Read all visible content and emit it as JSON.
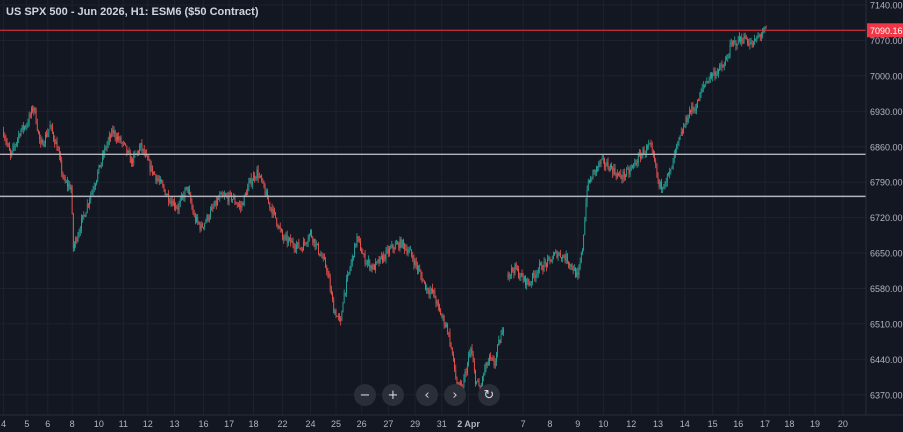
{
  "header": {
    "title": "US SPX 500 - Jun 2026, H1: ESM6 ($50 Contract)"
  },
  "toolbar": {
    "zoom_out": "−",
    "zoom_in": "+",
    "scroll_left": "‹",
    "scroll_right": "›",
    "reset": "↻"
  },
  "colors": {
    "background": "#131722",
    "grid": "#1e222d",
    "axis_text": "#b2b5be",
    "up": "#26a69a",
    "down": "#ef5350",
    "hline": "#b2b5be",
    "price_line": "#f23645"
  },
  "chart_data": {
    "type": "candlestick",
    "symbol": "ESM6",
    "timeframe": "H1",
    "y_axis": {
      "min": 6330,
      "max": 7150,
      "ticks": [
        7140,
        7070,
        7000,
        6930,
        6860,
        6790,
        6720,
        6650,
        6580,
        6510,
        6440,
        6370
      ],
      "tick_labels": [
        "7140.00",
        "7070.00",
        "7000.00",
        "6930.00",
        "6860.00",
        "6790.00",
        "6720.00",
        "6650.00",
        "6580.00",
        "6510.00",
        "6440.00",
        "6370.00"
      ]
    },
    "x_axis": {
      "labels": [
        "4",
        "5",
        "6",
        "8",
        "10",
        "11",
        "12",
        "13",
        "16",
        "17",
        "18",
        "22",
        "24",
        "25",
        "26",
        "27",
        "29",
        "31",
        "2 Apr",
        "7",
        "8",
        "9",
        "10",
        "12",
        "13",
        "14",
        "15",
        "16",
        "17",
        "18",
        "19",
        "20"
      ],
      "label_index": [
        0,
        20,
        38,
        59,
        82,
        103,
        124,
        147,
        172,
        194,
        215,
        240,
        264,
        286,
        308,
        331,
        354,
        377,
        400,
        447,
        470,
        494,
        516,
        540,
        563,
        586,
        610,
        632,
        655,
        676,
        698,
        722
      ]
    },
    "last_price": 7090.16,
    "last_price_label": "7090.16",
    "horizontal_levels": [
      6845,
      6762
    ],
    "anchors": [
      [
        0,
        6890
      ],
      [
        6,
        6840
      ],
      [
        14,
        6890
      ],
      [
        20,
        6905
      ],
      [
        26,
        6940
      ],
      [
        32,
        6860
      ],
      [
        40,
        6900
      ],
      [
        46,
        6860
      ],
      [
        52,
        6790
      ],
      [
        58,
        6780
      ],
      [
        60,
        6660
      ],
      [
        64,
        6690
      ],
      [
        70,
        6730
      ],
      [
        74,
        6760
      ],
      [
        80,
        6800
      ],
      [
        88,
        6860
      ],
      [
        94,
        6890
      ],
      [
        104,
        6860
      ],
      [
        110,
        6830
      ],
      [
        118,
        6860
      ],
      [
        126,
        6820
      ],
      [
        134,
        6790
      ],
      [
        142,
        6760
      ],
      [
        150,
        6740
      ],
      [
        158,
        6780
      ],
      [
        164,
        6720
      ],
      [
        170,
        6700
      ],
      [
        178,
        6730
      ],
      [
        186,
        6760
      ],
      [
        196,
        6760
      ],
      [
        204,
        6740
      ],
      [
        212,
        6790
      ],
      [
        218,
        6810
      ],
      [
        222,
        6790
      ],
      [
        228,
        6750
      ],
      [
        234,
        6720
      ],
      [
        240,
        6680
      ],
      [
        248,
        6670
      ],
      [
        256,
        6660
      ],
      [
        264,
        6690
      ],
      [
        272,
        6650
      ],
      [
        278,
        6620
      ],
      [
        284,
        6540
      ],
      [
        290,
        6510
      ],
      [
        292,
        6560
      ],
      [
        298,
        6620
      ],
      [
        304,
        6680
      ],
      [
        310,
        6640
      ],
      [
        318,
        6620
      ],
      [
        326,
        6640
      ],
      [
        334,
        6660
      ],
      [
        342,
        6670
      ],
      [
        350,
        6650
      ],
      [
        358,
        6610
      ],
      [
        364,
        6580
      ],
      [
        370,
        6570
      ],
      [
        374,
        6540
      ],
      [
        378,
        6520
      ],
      [
        382,
        6500
      ],
      [
        386,
        6450
      ],
      [
        390,
        6390
      ],
      [
        394,
        6380
      ],
      [
        398,
        6420
      ],
      [
        402,
        6460
      ],
      [
        406,
        6400
      ],
      [
        410,
        6380
      ],
      [
        414,
        6420
      ],
      [
        418,
        6440
      ],
      [
        422,
        6430
      ],
      [
        426,
        6470
      ],
      [
        430,
        6500
      ]
    ],
    "anchors_segment2": [
      [
        434,
        6610
      ],
      [
        440,
        6620
      ],
      [
        446,
        6600
      ],
      [
        452,
        6590
      ],
      [
        460,
        6620
      ],
      [
        468,
        6630
      ],
      [
        476,
        6650
      ],
      [
        484,
        6640
      ],
      [
        490,
        6620
      ],
      [
        494,
        6600
      ],
      [
        498,
        6660
      ],
      [
        502,
        6780
      ],
      [
        508,
        6810
      ],
      [
        514,
        6830
      ],
      [
        522,
        6820
      ],
      [
        530,
        6800
      ],
      [
        538,
        6810
      ],
      [
        544,
        6830
      ],
      [
        550,
        6850
      ],
      [
        556,
        6860
      ],
      [
        560,
        6830
      ],
      [
        564,
        6780
      ],
      [
        568,
        6790
      ],
      [
        574,
        6810
      ],
      [
        578,
        6850
      ],
      [
        584,
        6890
      ],
      [
        590,
        6930
      ],
      [
        596,
        6940
      ],
      [
        602,
        6980
      ],
      [
        608,
        7000
      ],
      [
        614,
        7010
      ],
      [
        620,
        7020
      ],
      [
        626,
        7060
      ],
      [
        632,
        7070
      ],
      [
        638,
        7075
      ],
      [
        644,
        7060
      ],
      [
        650,
        7080
      ],
      [
        656,
        7090
      ]
    ],
    "seed": 7
  }
}
